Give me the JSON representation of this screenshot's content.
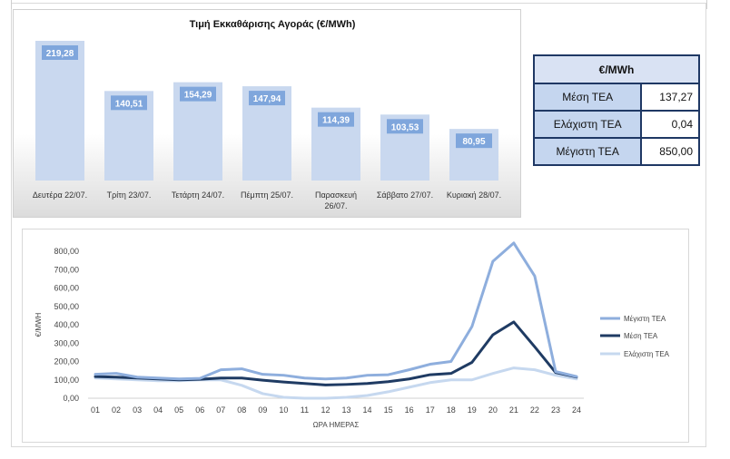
{
  "bar_chart": {
    "title": "Τιμή Εκκαθάρισης Αγοράς (€/MWh)"
  },
  "stats": {
    "header": "€/MWh",
    "rows": [
      {
        "label": "Μέση ΤΕΑ",
        "value": "137,27"
      },
      {
        "label": "Ελάχιστη ΤΕΑ",
        "value": "0,04"
      },
      {
        "label": "Μέγιστη ΤΕΑ",
        "value": "850,00"
      }
    ]
  },
  "colors": {
    "bar": "#c9d8ef",
    "bar_label_bg": "#7fa6dc",
    "max_series": "#8eaedd",
    "avg_series": "#1f3b63",
    "min_series": "#c6d8ef",
    "table_border": "#1f3864"
  },
  "chart_data": [
    {
      "type": "bar",
      "title": "Τιμή Εκκαθάρισης Αγοράς (€/MWh)",
      "categories": [
        "Δευτέρα 22/07.",
        "Τρίτη 23/07.",
        "Τετάρτη 24/07.",
        "Πέμπτη 25/07.",
        "Παρασκευή 26/07.",
        "Σάββατο 27/07.",
        "Κυριακή 28/07."
      ],
      "values": [
        219.28,
        140.51,
        154.29,
        147.94,
        114.39,
        103.53,
        80.95
      ],
      "value_labels": [
        "219,28",
        "140,51",
        "154,29",
        "147,94",
        "114,39",
        "103,53",
        "80,95"
      ],
      "grid": false
    },
    {
      "type": "line",
      "title": "",
      "xlabel": "ΩΡΑ ΗΜΕΡΑΣ",
      "ylabel": "€/MWH",
      "ylim": [
        0,
        800
      ],
      "yticks": [
        "0,00",
        "100,00",
        "200,00",
        "300,00",
        "400,00",
        "500,00",
        "600,00",
        "700,00",
        "800,00"
      ],
      "categories": [
        "01",
        "02",
        "03",
        "04",
        "05",
        "06",
        "07",
        "08",
        "09",
        "10",
        "11",
        "12",
        "13",
        "14",
        "15",
        "16",
        "17",
        "18",
        "19",
        "20",
        "21",
        "22",
        "23",
        "24"
      ],
      "legend": "right",
      "grid": false,
      "series": [
        {
          "name": "Μέγιστη ΤΕΑ",
          "values": [
            130,
            135,
            115,
            110,
            105,
            108,
            155,
            160,
            130,
            125,
            110,
            105,
            110,
            125,
            128,
            155,
            185,
            200,
            390,
            745,
            845,
            665,
            145,
            118
          ]
        },
        {
          "name": "Μέση ΤΕΑ",
          "values": [
            118,
            115,
            110,
            105,
            100,
            103,
            110,
            110,
            98,
            88,
            80,
            72,
            75,
            80,
            90,
            105,
            128,
            135,
            195,
            345,
            415,
            280,
            140,
            115
          ]
        },
        {
          "name": "Ελάχιστη ΤΕΑ",
          "values": [
            110,
            105,
            100,
            95,
            95,
            100,
            100,
            70,
            25,
            5,
            0,
            0,
            5,
            15,
            35,
            60,
            85,
            100,
            100,
            135,
            165,
            155,
            125,
            105
          ]
        }
      ]
    }
  ]
}
